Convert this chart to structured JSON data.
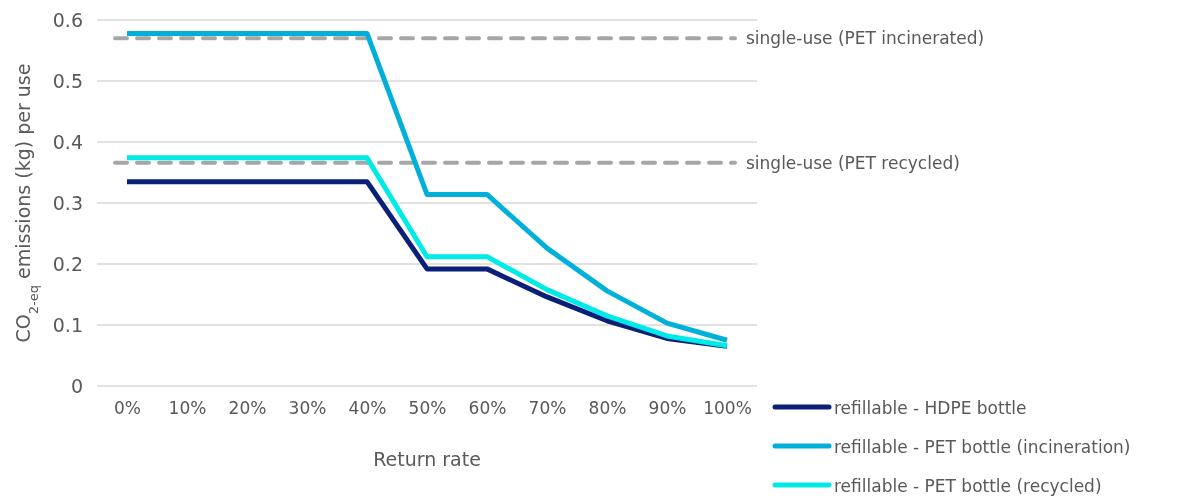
{
  "chart_data": {
    "type": "line",
    "xlabel": "Return rate",
    "ylabel": "CO$_{2-eq}$ emissions (kg) per use",
    "categories": [
      "0%",
      "10%",
      "20%",
      "30%",
      "40%",
      "50%",
      "60%",
      "70%",
      "80%",
      "90%",
      "100%"
    ],
    "series": [
      {
        "name": "refillable - HDPE bottle",
        "color": "#0c1f78",
        "values": [
          0.335,
          0.335,
          0.335,
          0.335,
          0.335,
          0.192,
          0.192,
          0.146,
          0.107,
          0.078,
          0.065
        ]
      },
      {
        "name": "refillable - PET bottle (incineration)",
        "color": "#00b0d8",
        "values": [
          0.578,
          0.578,
          0.578,
          0.578,
          0.578,
          0.314,
          0.314,
          0.226,
          0.156,
          0.103,
          0.075
        ]
      },
      {
        "name": "refillable - PET bottle (recycled)",
        "color": "#00eae6",
        "values": [
          0.374,
          0.374,
          0.374,
          0.374,
          0.374,
          0.212,
          0.212,
          0.158,
          0.115,
          0.082,
          0.066
        ]
      }
    ],
    "ylim": [
      0,
      0.6
    ],
    "yticks": [
      0,
      0.1,
      0.2,
      0.3,
      0.4,
      0.5,
      0.6
    ],
    "grid": "y",
    "legend": "bottom right",
    "marker": "none",
    "line_style": "solid",
    "ref_lines": [
      {
        "axis": "y",
        "value": 0.57,
        "label": "single-use (PET incinerated)",
        "color": "#a6a6a6",
        "line_style": "dashed"
      },
      {
        "axis": "y",
        "value": 0.366,
        "label": "single-use (PET recycled)",
        "color": "#a6a6a6",
        "line_style": "dashed"
      }
    ]
  }
}
